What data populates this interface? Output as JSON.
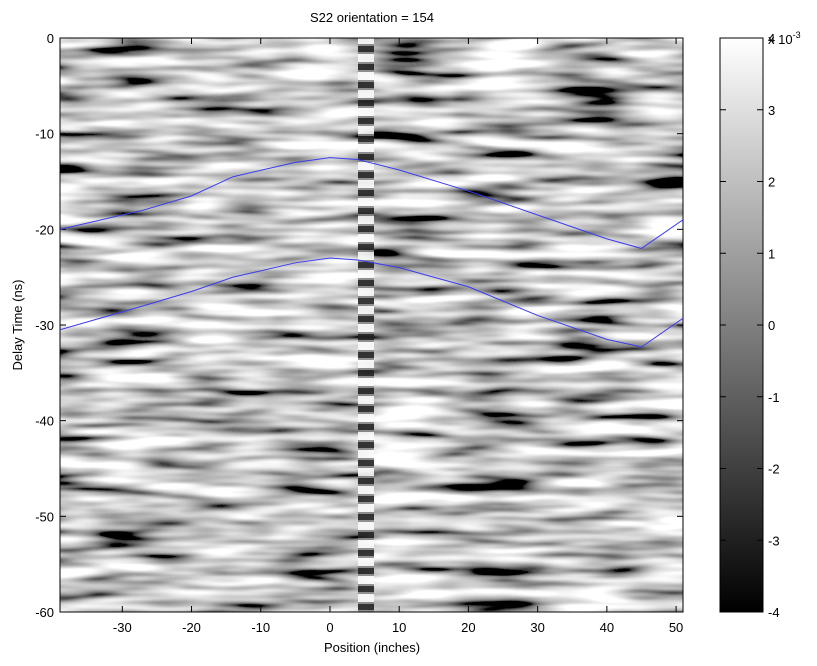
{
  "chart_data": {
    "type": "line",
    "title": "S22  orientation = 154",
    "x_label": "Position (inches)",
    "y_label": "Delay Time (ns)",
    "x": [
      -39,
      -27,
      -20,
      -14,
      -5,
      0,
      4,
      10,
      20,
      30,
      40,
      45,
      51
    ],
    "series": [
      {
        "color": "#3b3bf0",
        "values": [
          -20,
          -18,
          -16.5,
          -14.5,
          -13,
          -12.5,
          -12.7,
          -13.8,
          -16,
          -18.5,
          -21,
          -22,
          -19
        ]
      },
      {
        "color": "#3b3bf0",
        "values": [
          -30.5,
          -28,
          -26.5,
          -25,
          -23.5,
          -23,
          -23.2,
          -24,
          -26,
          -29,
          -31.5,
          -32.3,
          -29.3
        ]
      }
    ],
    "xlim": [
      -39,
      51
    ],
    "xticks": [
      -30,
      -20,
      -10,
      0,
      10,
      20,
      30,
      40,
      50
    ],
    "ylim": [
      -60,
      0
    ],
    "yticks": [
      0,
      -10,
      -20,
      -30,
      -40,
      -50,
      -60
    ],
    "colormap": "gray",
    "colorbar_lim": [
      -4,
      4
    ],
    "colorbar_ticks": [
      4,
      3,
      2,
      1,
      0,
      -1,
      -2,
      -3,
      -4
    ],
    "colorbar_multiplier": "x 10",
    "colorbar_exponent": "-3"
  }
}
